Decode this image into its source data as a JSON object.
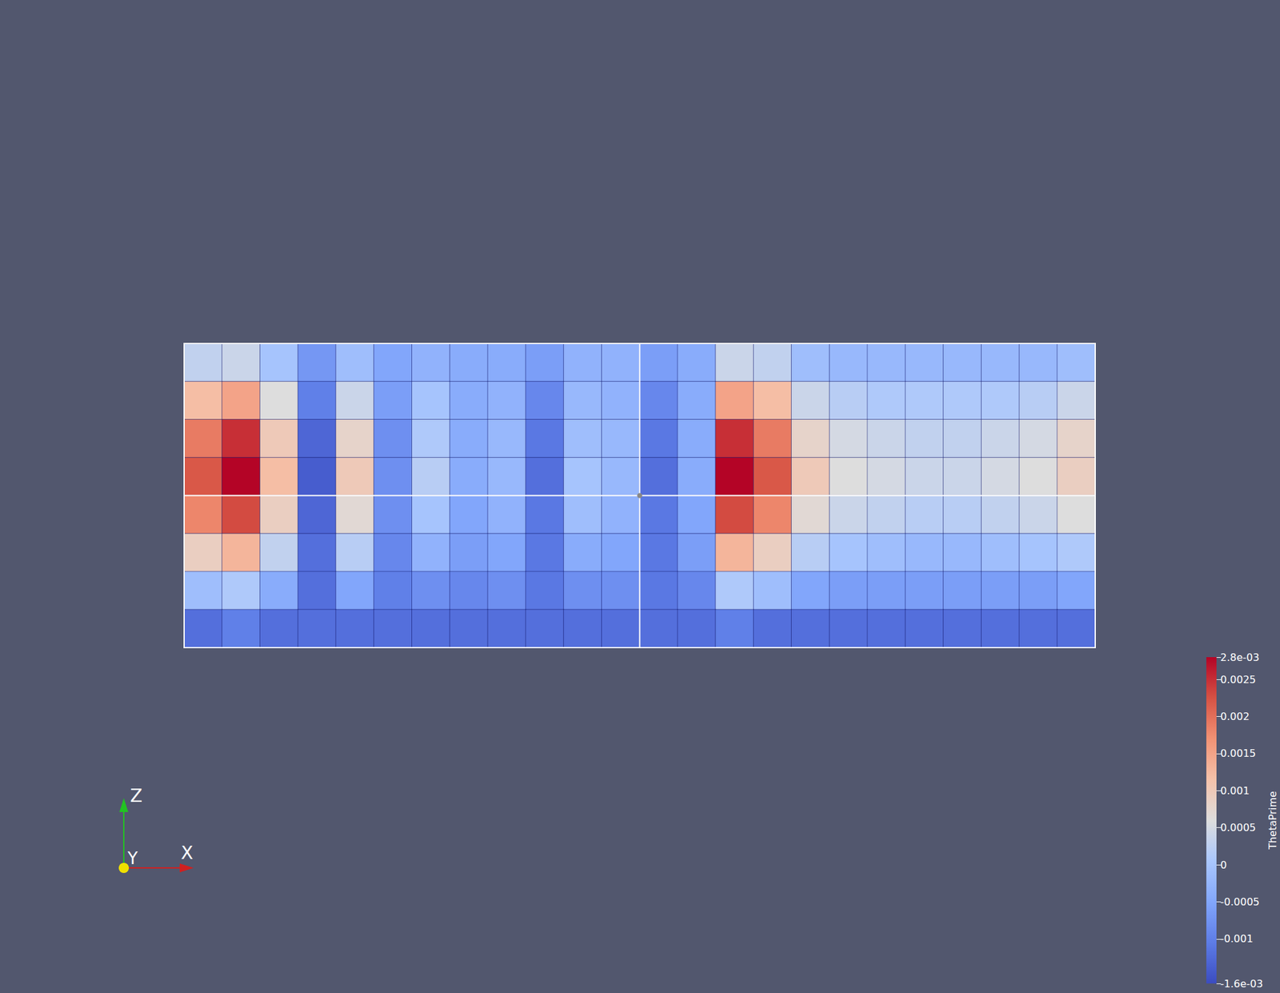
{
  "chart_data": {
    "type": "heatmap",
    "tick_labels": false,
    "grid": false,
    "colorbar_title": "ThetaPrime",
    "color_range": [
      -0.0016,
      0.0028
    ],
    "color_ticks": [
      {
        "value": -0.0016,
        "label": "-1.6e-03"
      },
      -0.001,
      -0.0005,
      0,
      0.0005,
      0.001,
      0.0015,
      0.002,
      0.0025,
      {
        "value": 0.0028,
        "label": "2.8e-03"
      }
    ],
    "axis_triad": [
      "X",
      "Y",
      "Z"
    ],
    "cells": [
      [
        0.0003,
        0.0004,
        0.0,
        -0.0007,
        -0.0001,
        -0.0005,
        -0.0003,
        -0.0004,
        -0.0004,
        -0.0006,
        -0.0003,
        -0.0003,
        -0.0006,
        -0.0004,
        0.0004,
        0.0003,
        -0.0001,
        -0.0002,
        -0.0002,
        -0.0002,
        -0.0002,
        -0.0002,
        -0.0002,
        -0.0001
      ],
      [
        0.0012,
        0.0015,
        0.0006,
        -0.001,
        0.0004,
        -0.0006,
        0.0,
        -0.0004,
        -0.0003,
        -0.0009,
        -0.0002,
        -0.0003,
        -0.0009,
        -0.0004,
        0.0015,
        0.0012,
        0.0004,
        0.0002,
        0.0001,
        0.0001,
        0.0001,
        0.0001,
        0.0002,
        0.0004
      ],
      [
        0.0019,
        0.0025,
        0.001,
        -0.0013,
        0.0008,
        -0.0008,
        0.0001,
        -0.0004,
        -0.0002,
        -0.0011,
        -0.0001,
        -0.0002,
        -0.0011,
        -0.0004,
        0.0025,
        0.0019,
        0.0008,
        0.0005,
        0.0004,
        0.0003,
        0.0003,
        0.0004,
        0.0005,
        0.0008
      ],
      [
        0.0022,
        0.0028,
        0.0012,
        -0.0014,
        0.001,
        -0.0008,
        0.0002,
        -0.0004,
        -0.0002,
        -0.0012,
        0.0,
        -0.0002,
        -0.0012,
        -0.0004,
        0.0028,
        0.0022,
        0.001,
        0.0006,
        0.0005,
        0.0004,
        0.0004,
        0.0005,
        0.0006,
        0.0009
      ],
      [
        0.0018,
        0.0023,
        0.0009,
        -0.0013,
        0.0007,
        -0.0008,
        0.0,
        -0.0005,
        -0.0003,
        -0.0011,
        -0.0001,
        -0.0003,
        -0.0011,
        -0.0005,
        0.0023,
        0.0018,
        0.0007,
        0.0004,
        0.0003,
        0.0002,
        0.0002,
        0.0003,
        0.0004,
        0.0006
      ],
      [
        0.0009,
        0.0013,
        0.0003,
        -0.0012,
        0.0002,
        -0.0009,
        -0.0003,
        -0.0006,
        -0.0005,
        -0.0011,
        -0.0004,
        -0.0005,
        -0.0011,
        -0.0006,
        0.0013,
        0.0009,
        0.0002,
        0.0,
        -0.0001,
        -0.0002,
        -0.0002,
        -0.0001,
        0.0,
        0.0001
      ],
      [
        -0.0001,
        0.0001,
        -0.0004,
        -0.0012,
        -0.0005,
        -0.001,
        -0.0008,
        -0.0009,
        -0.0008,
        -0.0011,
        -0.0008,
        -0.0008,
        -0.0011,
        -0.0009,
        0.0001,
        -0.0001,
        -0.0005,
        -0.0006,
        -0.0006,
        -0.0006,
        -0.0006,
        -0.0006,
        -0.0006,
        -0.0005
      ],
      [
        -0.0012,
        -0.001,
        -0.0012,
        -0.0012,
        -0.0012,
        -0.0012,
        -0.0012,
        -0.0012,
        -0.0012,
        -0.0012,
        -0.0012,
        -0.0012,
        -0.0012,
        -0.0012,
        -0.001,
        -0.0012,
        -0.0012,
        -0.0012,
        -0.0012,
        -0.0012,
        -0.0012,
        -0.0012,
        -0.0012,
        -0.0012
      ]
    ]
  }
}
